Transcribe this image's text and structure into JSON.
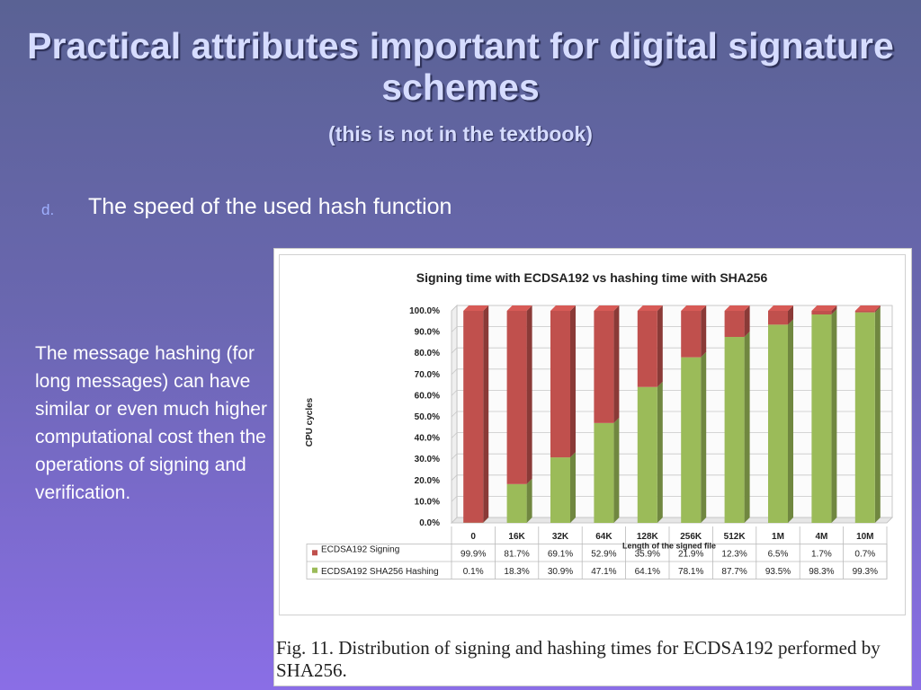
{
  "slide": {
    "title": "Practical attributes important for digital signature schemes",
    "subtitle": "(this is not in the textbook)",
    "bullet_marker": "d.",
    "bullet_text": "The speed of the used hash function",
    "side_text": "The message hashing (for long messages) can have similar or even much higher computational cost then the operations of signing and verification.",
    "caption": "Fig. 11.   Distribution of signing and hashing times for ECDSA192 performed by  SHA256."
  },
  "chart_data": {
    "type": "bar",
    "stacked": true,
    "three_d": true,
    "title": "Signing time with ECDSA192 vs hashing time with SHA256",
    "xlabel": "Length of the signed file",
    "ylabel": "CPU cycles",
    "ylim": [
      0,
      100
    ],
    "yticks": [
      "0.0%",
      "10.0%",
      "20.0%",
      "30.0%",
      "40.0%",
      "50.0%",
      "60.0%",
      "70.0%",
      "80.0%",
      "90.0%",
      "100.0%"
    ],
    "grid": true,
    "categories": [
      "0",
      "16K",
      "32K",
      "64K",
      "128K",
      "256K",
      "512K",
      "1M",
      "4M",
      "10M"
    ],
    "series": [
      {
        "name": "ECDSA192 Signing",
        "color": "#c0504d",
        "values": [
          99.9,
          81.7,
          69.1,
          52.9,
          35.9,
          21.9,
          12.3,
          6.5,
          1.7,
          0.7
        ],
        "labels": [
          "99.9%",
          "81.7%",
          "69.1%",
          "52.9%",
          "35.9%",
          "21.9%",
          "12.3%",
          "6.5%",
          "1.7%",
          "0.7%"
        ]
      },
      {
        "name": "ECDSA192 SHA256 Hashing",
        "color": "#9bbb59",
        "values": [
          0.1,
          18.3,
          30.9,
          47.1,
          64.1,
          78.1,
          87.7,
          93.5,
          98.3,
          99.3
        ],
        "labels": [
          "0.1%",
          "18.3%",
          "30.9%",
          "47.1%",
          "64.1%",
          "78.1%",
          "87.7%",
          "93.5%",
          "98.3%",
          "99.3%"
        ]
      }
    ]
  }
}
